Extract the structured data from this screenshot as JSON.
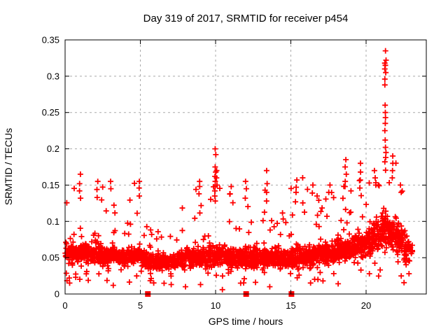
{
  "chart_data": {
    "type": "scatter",
    "title": "Day 319 of 2017, SRMTID for receiver p454",
    "xlabel": "GPS time / hours",
    "ylabel": "SRMTID / TECUs",
    "xlim": [
      0,
      24
    ],
    "ylim": [
      0,
      0.35
    ],
    "xticks": [
      0,
      5,
      10,
      15,
      20
    ],
    "xtick_labels": [
      "0",
      "5",
      "10",
      "15",
      "20"
    ],
    "yticks": [
      0,
      0.05,
      0.1,
      0.15,
      0.2,
      0.25,
      0.3,
      0.35
    ],
    "ytick_labels": [
      "0",
      "0.05",
      "0.1",
      "0.15",
      "0.2",
      "0.25",
      "0.3",
      "0.35"
    ],
    "grid": true,
    "grid_style": "dashed",
    "grid_color": "#a9a9a9",
    "border_color": "#000000",
    "background": "#ffffff",
    "marker": {
      "shape": "plus",
      "color": "#ff0000",
      "size": 8
    },
    "zero_marker": {
      "shape": "filled-square",
      "color": "#ff0000",
      "size": 8
    },
    "zero_marker_x": [
      5.5,
      12.03,
      15.04
    ],
    "data_x_extent": [
      0.0,
      23.1
    ],
    "seed": 20171115,
    "density_bins_format": [
      "x_start",
      "x_end",
      "n_points",
      "median",
      "spread",
      "max"
    ],
    "density_bins": [
      [
        0.0,
        0.5,
        48,
        0.055,
        0.02,
        0.13
      ],
      [
        0.5,
        1.0,
        50,
        0.058,
        0.022,
        0.16
      ],
      [
        1.0,
        1.5,
        50,
        0.058,
        0.022,
        0.145
      ],
      [
        1.5,
        2.0,
        48,
        0.055,
        0.02,
        0.13
      ],
      [
        2.0,
        2.5,
        50,
        0.058,
        0.022,
        0.155
      ],
      [
        2.5,
        3.0,
        48,
        0.05,
        0.018,
        0.12
      ],
      [
        3.0,
        3.5,
        48,
        0.053,
        0.02,
        0.13
      ],
      [
        3.5,
        4.0,
        48,
        0.05,
        0.018,
        0.12
      ],
      [
        4.0,
        4.5,
        48,
        0.053,
        0.02,
        0.14
      ],
      [
        4.5,
        5.0,
        50,
        0.053,
        0.02,
        0.155
      ],
      [
        5.0,
        5.5,
        46,
        0.048,
        0.018,
        0.12
      ],
      [
        5.5,
        6.0,
        46,
        0.045,
        0.016,
        0.11
      ],
      [
        6.0,
        6.5,
        48,
        0.044,
        0.016,
        0.1
      ],
      [
        6.5,
        7.0,
        48,
        0.045,
        0.016,
        0.11
      ],
      [
        7.0,
        7.5,
        50,
        0.045,
        0.016,
        0.115
      ],
      [
        7.5,
        8.0,
        50,
        0.048,
        0.018,
        0.12
      ],
      [
        8.0,
        8.5,
        50,
        0.05,
        0.018,
        0.13
      ],
      [
        8.5,
        9.0,
        50,
        0.05,
        0.018,
        0.15
      ],
      [
        9.0,
        9.5,
        52,
        0.05,
        0.02,
        0.14
      ],
      [
        9.5,
        10.0,
        52,
        0.053,
        0.022,
        0.185
      ],
      [
        10.0,
        10.5,
        52,
        0.053,
        0.022,
        0.17
      ],
      [
        10.5,
        11.0,
        50,
        0.05,
        0.02,
        0.15
      ],
      [
        11.0,
        11.5,
        50,
        0.05,
        0.02,
        0.14
      ],
      [
        11.5,
        12.0,
        52,
        0.05,
        0.02,
        0.15
      ],
      [
        12.0,
        12.5,
        52,
        0.05,
        0.02,
        0.155
      ],
      [
        12.5,
        13.0,
        50,
        0.05,
        0.02,
        0.13
      ],
      [
        13.0,
        13.5,
        52,
        0.05,
        0.02,
        0.165
      ],
      [
        13.5,
        14.0,
        50,
        0.05,
        0.018,
        0.13
      ],
      [
        14.0,
        14.5,
        50,
        0.048,
        0.018,
        0.12
      ],
      [
        14.5,
        15.0,
        50,
        0.048,
        0.018,
        0.125
      ],
      [
        15.0,
        15.5,
        50,
        0.05,
        0.02,
        0.155
      ],
      [
        15.5,
        16.0,
        50,
        0.05,
        0.02,
        0.17
      ],
      [
        16.0,
        16.5,
        50,
        0.05,
        0.02,
        0.15
      ],
      [
        16.5,
        17.0,
        50,
        0.053,
        0.02,
        0.14
      ],
      [
        17.0,
        17.5,
        50,
        0.055,
        0.022,
        0.15
      ],
      [
        17.5,
        18.0,
        52,
        0.058,
        0.022,
        0.16
      ],
      [
        18.0,
        18.5,
        52,
        0.06,
        0.024,
        0.17
      ],
      [
        18.5,
        19.0,
        54,
        0.063,
        0.026,
        0.185
      ],
      [
        19.0,
        19.5,
        54,
        0.065,
        0.026,
        0.175
      ],
      [
        19.5,
        20.0,
        54,
        0.068,
        0.028,
        0.165
      ],
      [
        20.0,
        20.5,
        56,
        0.073,
        0.03,
        0.17
      ],
      [
        20.5,
        21.0,
        56,
        0.078,
        0.03,
        0.175
      ],
      [
        21.0,
        21.5,
        58,
        0.088,
        0.034,
        0.175
      ],
      [
        21.5,
        22.0,
        56,
        0.083,
        0.032,
        0.19
      ],
      [
        22.0,
        22.5,
        54,
        0.078,
        0.03,
        0.155
      ],
      [
        22.5,
        23.1,
        46,
        0.06,
        0.025,
        0.135
      ]
    ],
    "feature_columns": [
      {
        "x": 21.28,
        "ys": [
          0.335,
          0.322,
          0.318,
          0.315,
          0.31,
          0.305,
          0.296,
          0.288,
          0.26,
          0.25,
          0.243,
          0.235,
          0.225,
          0.212,
          0.202,
          0.195,
          0.188,
          0.182
        ]
      },
      {
        "x": 9.98,
        "ys": [
          0.2,
          0.192,
          0.175,
          0.168,
          0.162,
          0.155,
          0.148,
          0.142,
          0.135,
          0.128
        ]
      },
      {
        "x": 10.08,
        "ys": [
          0.17,
          0.16,
          0.15
        ]
      },
      {
        "x": 13.4,
        "ys": [
          0.17,
          0.152,
          0.14,
          0.128
        ]
      },
      {
        "x": 1.0,
        "ys": [
          0.165,
          0.152,
          0.142,
          0.132
        ]
      },
      {
        "x": 2.15,
        "ys": [
          0.155,
          0.144,
          0.133
        ]
      },
      {
        "x": 3.02,
        "ys": [
          0.155,
          0.145
        ]
      },
      {
        "x": 4.9,
        "ys": [
          0.155,
          0.146,
          0.135
        ]
      },
      {
        "x": 8.9,
        "ys": [
          0.155,
          0.148,
          0.138
        ]
      },
      {
        "x": 12.0,
        "ys": [
          0.155,
          0.145,
          0.132
        ]
      },
      {
        "x": 15.35,
        "ys": [
          0.157,
          0.147,
          0.14,
          0.127
        ]
      },
      {
        "x": 16.45,
        "ys": [
          0.15,
          0.139
        ]
      },
      {
        "x": 17.55,
        "ys": [
          0.15,
          0.14
        ]
      },
      {
        "x": 18.65,
        "ys": [
          0.185,
          0.175,
          0.165,
          0.155,
          0.148
        ]
      },
      {
        "x": 19.6,
        "ys": [
          0.18,
          0.168,
          0.157,
          0.146
        ]
      },
      {
        "x": 20.6,
        "ys": [
          0.17,
          0.16,
          0.15
        ]
      },
      {
        "x": 21.75,
        "ys": [
          0.19,
          0.18,
          0.17,
          0.16
        ]
      },
      {
        "x": 11.0,
        "ys": [
          0.148,
          0.138
        ]
      },
      {
        "x": 22.3,
        "ys": [
          0.15,
          0.14
        ]
      }
    ],
    "low_outliers": [
      [
        0.3,
        0.015
      ],
      [
        3.2,
        0.012
      ],
      [
        7.05,
        0.013
      ],
      [
        8.0,
        0.01
      ],
      [
        9.0,
        0.013
      ],
      [
        10.45,
        0.006
      ],
      [
        12.65,
        0.016
      ],
      [
        13.6,
        0.01
      ],
      [
        16.8,
        0.02
      ],
      [
        22.85,
        0.028
      ]
    ]
  }
}
